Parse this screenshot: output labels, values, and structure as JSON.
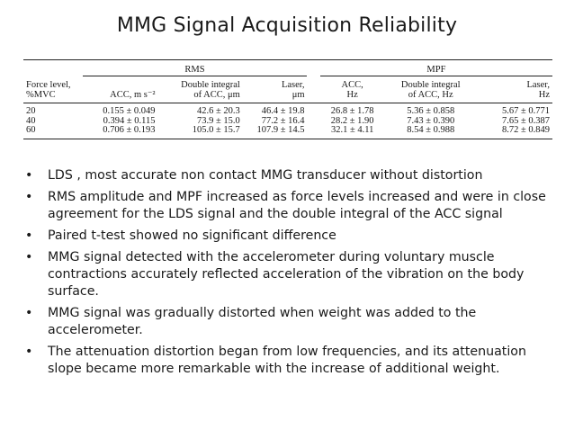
{
  "slide": {
    "title": "MMG Signal Acquisition Reliability"
  },
  "table": {
    "group_headers": {
      "rms": "RMS",
      "mpf": "MPF"
    },
    "column_headers": [
      {
        "line1": "Force level,",
        "line2": "%MVC"
      },
      {
        "line1": "",
        "line2": "ACC, m s⁻²"
      },
      {
        "line1": "Double integral",
        "line2": "of ACC, μm"
      },
      {
        "line1": "Laser,",
        "line2": "μm"
      },
      {
        "line1": "ACC,",
        "line2": "Hz"
      },
      {
        "line1": "Double integral",
        "line2": "of ACC, Hz"
      },
      {
        "line1": "Laser,",
        "line2": "Hz"
      }
    ],
    "rows": [
      [
        "20",
        "0.155 ± 0.049",
        "42.6 ± 20.3",
        "46.4 ± 19.8",
        "26.8 ± 1.78",
        "5.36 ± 0.858",
        "5.67 ± 0.771"
      ],
      [
        "40",
        "0.394 ± 0.115",
        "73.9 ± 15.0",
        "77.2 ± 16.4",
        "28.2 ± 1.90",
        "7.43 ± 0.390",
        "7.65 ± 0.387"
      ],
      [
        "60",
        "0.706 ± 0.193",
        "105.0 ± 15.7",
        "107.9 ± 14.5",
        "32.1 ± 4.11",
        "8.54 ± 0.988",
        "8.72 ± 0.849"
      ]
    ]
  },
  "bullets": [
    "LDS , most accurate non contact MMG transducer without distortion",
    "RMS amplitude and MPF increased as force levels increased and were in close agreement for the LDS signal and the double integral of the ACC signal",
    "Paired t-test showed no significant difference",
    "MMG signal detected with the accelerometer during voluntary muscle contractions accurately reflected acceleration of the vibration on the body surface.",
    "MMG signal was gradually distorted when weight was added to the accelerometer.",
    "The attenuation distortion began from low frequencies, and its attenuation slope became more remarkable with the increase of additional weight."
  ],
  "bullet_symbol": "•"
}
